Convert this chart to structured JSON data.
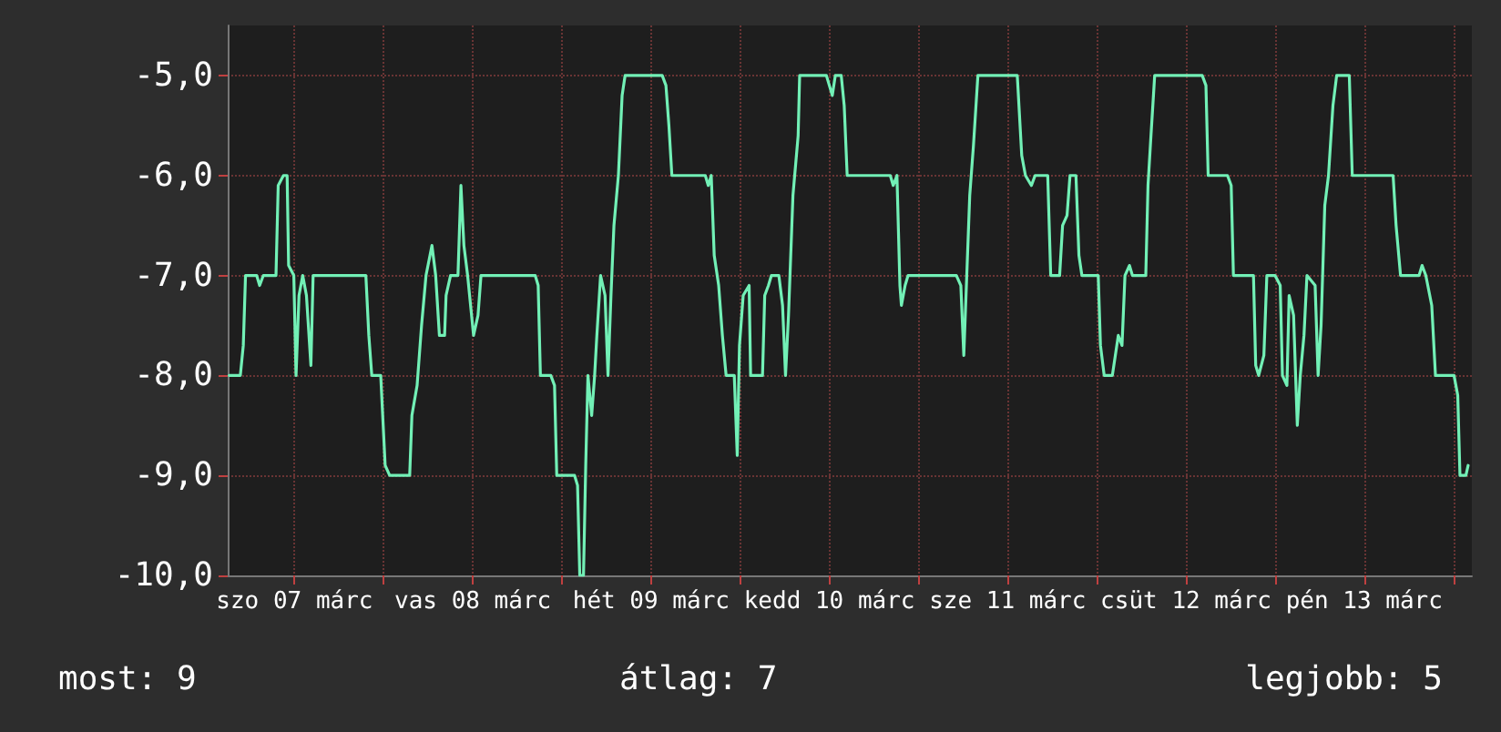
{
  "chart_data": {
    "type": "line",
    "xlim": [
      "--03-07T03:00",
      "--03-14T02:30"
    ],
    "ylim": [
      -10,
      -4.5
    ],
    "xticks": [
      {
        "value": "--03-07T12:00",
        "label": "szo 07 márc"
      },
      {
        "value": "--03-08T00:00",
        "label": null
      },
      {
        "value": "--03-08T12:00",
        "label": "vas 08 márc"
      },
      {
        "value": "--03-09T00:00",
        "label": null
      },
      {
        "value": "--03-09T12:00",
        "label": "hét 09 márc"
      },
      {
        "value": "--03-10T00:00",
        "label": null
      },
      {
        "value": "--03-10T12:00",
        "label": "kedd 10 márc"
      },
      {
        "value": "--03-11T00:00",
        "label": null
      },
      {
        "value": "--03-11T12:00",
        "label": "sze 11 márc"
      },
      {
        "value": "--03-12T00:00",
        "label": null
      },
      {
        "value": "--03-12T12:00",
        "label": "csüt 12 márc"
      },
      {
        "value": "--03-13T00:00",
        "label": null
      },
      {
        "value": "--03-13T12:00",
        "label": "pén 13 márc"
      },
      {
        "value": "--03-14T00:00",
        "label": null
      }
    ],
    "yticks": [
      {
        "value": -10,
        "label": "-10,0"
      },
      {
        "value": -9,
        "label": "-9,0"
      },
      {
        "value": -8,
        "label": "-8,0"
      },
      {
        "value": -7,
        "label": "-7,0"
      },
      {
        "value": -6,
        "label": "-6,0"
      },
      {
        "value": -5,
        "label": "-5,0"
      }
    ],
    "grid": true,
    "marker": "none",
    "line_style": "solid",
    "annotations": [
      "most: 9",
      "átlag: 7",
      "legjobb: 5"
    ],
    "series": [
      {
        "color": "#72f0b6",
        "x": [
          "--03-07T03:12",
          "--03-07T04:42",
          "--03-07T05:06",
          "--03-07T05:24",
          "--03-07T06:54",
          "--03-07T07:18",
          "--03-07T07:48",
          "--03-07T09:30",
          "--03-07T09:48",
          "--03-07T10:30",
          "--03-07T11:00",
          "--03-07T11:12",
          "--03-07T11:54",
          "--03-07T12:12",
          "--03-07T12:36",
          "--03-07T13:06",
          "--03-07T13:36",
          "--03-07T14:12",
          "--03-07T14:30",
          "--03-07T21:36",
          "--03-07T22:00",
          "--03-07T22:24",
          "--03-07T23:36",
          "--03-08T00:12",
          "--03-08T00:48",
          "--03-08T03:30",
          "--03-08T03:48",
          "--03-08T04:30",
          "--03-08T05:06",
          "--03-08T05:42",
          "--03-08T06:30",
          "--03-08T07:00",
          "--03-08T07:30",
          "--03-08T08:12",
          "--03-08T08:24",
          "--03-08T09:00",
          "--03-08T10:00",
          "--03-08T10:24",
          "--03-08T10:48",
          "--03-08T11:18",
          "--03-08T12:06",
          "--03-08T12:42",
          "--03-08T13:06",
          "--03-08T20:24",
          "--03-08T20:48",
          "--03-08T21:06",
          "--03-08T22:30",
          "--03-08T23:00",
          "--03-08T23:18",
          "--03-09T01:42",
          "--03-09T02:06",
          "--03-09T02:24",
          "--03-09T02:54",
          "--03-09T03:12",
          "--03-09T03:30",
          "--03-09T04:00",
          "--03-09T04:24",
          "--03-09T04:42",
          "--03-09T05:12",
          "--03-09T05:48",
          "--03-09T06:12",
          "--03-09T06:36",
          "--03-09T07:00",
          "--03-09T07:36",
          "--03-09T08:06",
          "--03-09T08:30",
          "--03-09T13:30",
          "--03-09T14:00",
          "--03-09T14:24",
          "--03-09T14:48",
          "--03-09T19:18",
          "--03-09T19:42",
          "--03-09T20:06",
          "--03-09T20:30",
          "--03-09T21:06",
          "--03-09T21:36",
          "--03-09T22:06",
          "--03-09T23:12",
          "--03-09T23:36",
          "--03-09T23:54",
          "--03-10T00:24",
          "--03-10T01:12",
          "--03-10T01:24",
          "--03-10T03:00",
          "--03-10T03:18",
          "--03-10T03:48",
          "--03-10T04:12",
          "--03-10T05:12",
          "--03-10T05:42",
          "--03-10T06:06",
          "--03-10T06:30",
          "--03-10T07:06",
          "--03-10T07:48",
          "--03-10T08:00",
          "--03-10T11:36",
          "--03-10T12:00",
          "--03-10T12:24",
          "--03-10T12:48",
          "--03-10T13:36",
          "--03-10T14:00",
          "--03-10T14:24",
          "--03-10T20:12",
          "--03-10T20:36",
          "--03-10T21:06",
          "--03-10T21:30",
          "--03-10T21:42",
          "--03-10T22:12",
          "--03-10T22:36",
          "--03-11T05:06",
          "--03-11T05:42",
          "--03-11T06:06",
          "--03-11T06:30",
          "--03-11T06:54",
          "--03-11T07:24",
          "--03-11T08:00",
          "--03-11T13:18",
          "--03-11T13:54",
          "--03-11T14:24",
          "--03-11T15:12",
          "--03-11T15:42",
          "--03-11T17:24",
          "--03-11T17:48",
          "--03-11T19:00",
          "--03-11T19:24",
          "--03-11T20:00",
          "--03-11T20:24",
          "--03-11T21:12",
          "--03-11T21:36",
          "--03-11T22:00",
          "--03-12T00:12",
          "--03-12T00:30",
          "--03-12T01:00",
          "--03-12T02:06",
          "--03-12T02:30",
          "--03-12T02:54",
          "--03-12T03:24",
          "--03-12T03:48",
          "--03-12T04:24",
          "--03-12T04:48",
          "--03-12T06:36",
          "--03-12T06:54",
          "--03-12T07:18",
          "--03-12T07:48",
          "--03-12T14:12",
          "--03-12T14:42",
          "--03-12T15:00",
          "--03-12T17:36",
          "--03-12T18:06",
          "--03-12T18:24",
          "--03-12T21:06",
          "--03-12T21:24",
          "--03-12T21:48",
          "--03-12T22:30",
          "--03-12T22:54",
          "--03-13T00:00",
          "--03-13T00:42",
          "--03-13T01:00",
          "--03-13T01:36",
          "--03-13T01:54",
          "--03-13T02:30",
          "--03-13T03:00",
          "--03-13T03:24",
          "--03-13T03:54",
          "--03-13T04:18",
          "--03-13T05:24",
          "--03-13T05:48",
          "--03-13T06:12",
          "--03-13T06:42",
          "--03-13T07:12",
          "--03-13T07:48",
          "--03-13T08:18",
          "--03-13T10:00",
          "--03-13T10:24",
          "--03-13T15:54",
          "--03-13T16:18",
          "--03-13T16:54",
          "--03-13T19:24",
          "--03-13T19:48",
          "--03-13T20:18",
          "--03-13T21:06",
          "--03-13T21:36",
          "--03-14T00:06",
          "--03-14T00:36",
          "--03-14T00:54",
          "--03-14T01:42",
          "--03-14T02:00"
        ],
        "values": [
          -8,
          -8,
          -7.7,
          -7,
          -7,
          -7.1,
          -7,
          -7,
          -6.1,
          -6,
          -6,
          -6.9,
          -7,
          -8,
          -7.2,
          -7,
          -7.2,
          -7.9,
          -7,
          -7,
          -7.6,
          -8,
          -8,
          -8.9,
          -9,
          -9,
          -8.4,
          -8.1,
          -7.5,
          -7,
          -6.7,
          -7,
          -7.6,
          -7.6,
          -7.2,
          -7,
          -7,
          -6.1,
          -6.7,
          -7,
          -7.6,
          -7.4,
          -7,
          -7,
          -7.1,
          -8,
          -8,
          -8.1,
          -9,
          -9,
          -9.1,
          -10,
          -10,
          -8.9,
          -8,
          -8.4,
          -8,
          -7.6,
          -7,
          -7.2,
          -8,
          -7.2,
          -6.5,
          -6,
          -5.2,
          -5,
          -5,
          -5.1,
          -5.5,
          -6,
          -6,
          -6.1,
          -6,
          -6.8,
          -7.1,
          -7.6,
          -8,
          -8,
          -8.8,
          -7.7,
          -7.2,
          -7.1,
          -8,
          -8,
          -7.2,
          -7.1,
          -7,
          -7,
          -7.3,
          -8,
          -7.4,
          -6.2,
          -5.6,
          -5,
          -5,
          -5.1,
          -5.2,
          -5,
          -5,
          -5.3,
          -6,
          -6,
          -6.1,
          -6,
          -7.1,
          -7.3,
          -7.1,
          -7,
          -7,
          -7.1,
          -7.8,
          -7,
          -6.2,
          -5.7,
          -5,
          -5,
          -5.8,
          -6,
          -6.1,
          -6,
          -6,
          -7,
          -7,
          -6.5,
          -6.4,
          -6,
          -6,
          -6.8,
          -7,
          -7,
          -7.7,
          -8,
          -8,
          -7.8,
          -7.6,
          -7.7,
          -7,
          -6.9,
          -7,
          -7,
          -6.1,
          -5.6,
          -5,
          -5,
          -5.1,
          -6,
          -6,
          -6.1,
          -7,
          -7,
          -7.9,
          -8,
          -7.8,
          -7,
          -7,
          -7.1,
          -8,
          -8.1,
          -7.2,
          -7.4,
          -8.5,
          -8,
          -7.6,
          -7,
          -7.1,
          -8,
          -7.5,
          -6.3,
          -6,
          -5.3,
          -5,
          -5,
          -6,
          -6,
          -6.5,
          -7,
          -7,
          -6.9,
          -7,
          -7.3,
          -8,
          -8,
          -8.2,
          -9,
          -9,
          -8.9
        ]
      }
    ]
  }
}
